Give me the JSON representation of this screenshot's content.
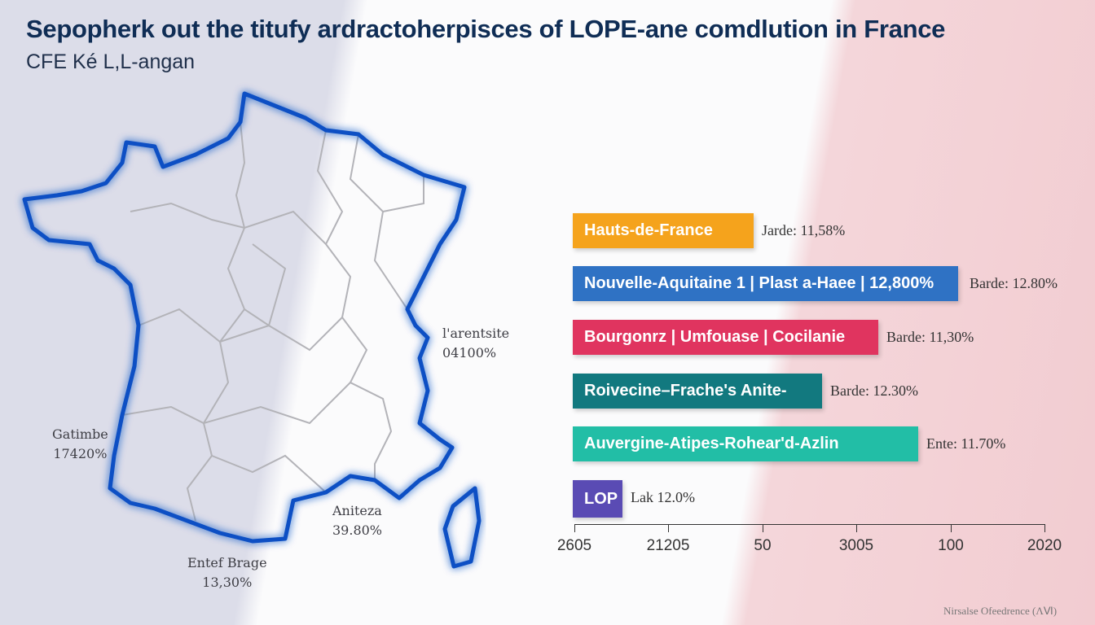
{
  "header": {
    "title": "Sepopherk out the titufy ardractoherpisces of LOPE-ane comdlution in France",
    "subtitle": "CFE Ké L,L-angan"
  },
  "map": {
    "outline_color": "#0a4fc4",
    "labels": [
      {
        "name": "l'arentsite",
        "value": "04100%"
      },
      {
        "name": "Gatimbe",
        "value": "17420%"
      },
      {
        "name": "Aniteza",
        "value": "39.80%"
      },
      {
        "name": "Entef Brage",
        "value": "13,30%"
      }
    ]
  },
  "chart_data": {
    "type": "bar",
    "orientation": "horizontal",
    "categories": [
      "Hauts-de-France",
      "Nouvelle-Aquitaine 1 | Plast a-Haee | 12,800%",
      "Bourgonrz | Umfouase | Cocilanie",
      "Roivecine–Frache's Anite-",
      "Auvergine-Atipes-Rohear'd-Azlin",
      "LOP"
    ],
    "value_labels": [
      "Jarde: 11,58%",
      "Barde: 12.80%",
      "Barde: 11,30%",
      "Barde: 12.30%",
      "Ente: 11.70%",
      "Lak 12.0%"
    ],
    "bar_fraction_of_axis": [
      0.385,
      0.82,
      0.65,
      0.53,
      0.735,
      0.106
    ],
    "colors": [
      "#f5a31c",
      "#2f72c4",
      "#e0345f",
      "#12797f",
      "#22bea6",
      "#5a4bb4"
    ],
    "x_ticks": [
      "2605",
      "21205",
      "50",
      "3005",
      "100",
      "2020"
    ],
    "footnote": "Nirsalse Ofeedrence (ΛⅥ)"
  }
}
